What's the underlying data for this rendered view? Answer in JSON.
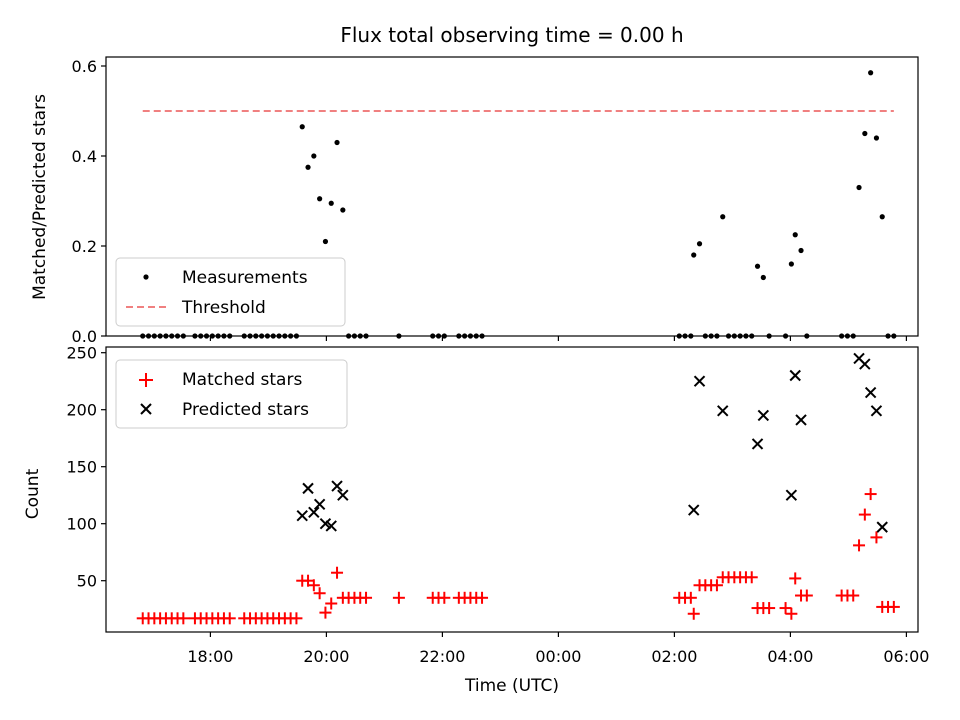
{
  "chart_data": [
    {
      "type": "scatter",
      "title": "Flux total observing time = 0.00 h",
      "xlabel": "",
      "ylabel": "Matched/Predicted stars",
      "xlim": [
        "16:12",
        "06:12"
      ],
      "ylim": [
        0,
        0.62
      ],
      "yticks": [
        "0.0",
        "0.2",
        "0.4",
        "0.6"
      ],
      "yticks_values": [
        0,
        0.2,
        0.4,
        0.6
      ],
      "grid": false,
      "legend": "lower-left",
      "series": [
        {
          "name": "Measurements",
          "kind": "scatter",
          "marker": "dot",
          "color": "#000000",
          "points": [
            [
              "16:50",
              0
            ],
            [
              "16:56",
              0
            ],
            [
              "17:02",
              0
            ],
            [
              "17:08",
              0
            ],
            [
              "17:14",
              0
            ],
            [
              "17:20",
              0
            ],
            [
              "17:26",
              0
            ],
            [
              "17:32",
              0
            ],
            [
              "17:44",
              0
            ],
            [
              "17:50",
              0
            ],
            [
              "17:56",
              0
            ],
            [
              "18:02",
              0
            ],
            [
              "18:08",
              0
            ],
            [
              "18:14",
              0
            ],
            [
              "18:20",
              0
            ],
            [
              "18:35",
              0
            ],
            [
              "18:41",
              0
            ],
            [
              "18:47",
              0
            ],
            [
              "18:53",
              0
            ],
            [
              "18:59",
              0
            ],
            [
              "19:05",
              0
            ],
            [
              "19:11",
              0
            ],
            [
              "19:17",
              0
            ],
            [
              "19:23",
              0
            ],
            [
              "19:29",
              0
            ],
            [
              "19:35",
              0.465
            ],
            [
              "19:41",
              0.375
            ],
            [
              "19:47",
              0.4
            ],
            [
              "19:53",
              0.305
            ],
            [
              "19:59",
              0.21
            ],
            [
              "20:05",
              0.295
            ],
            [
              "20:11",
              0.43
            ],
            [
              "20:17",
              0.28
            ],
            [
              "20:23",
              0
            ],
            [
              "20:29",
              0
            ],
            [
              "20:35",
              0
            ],
            [
              "20:41",
              0
            ],
            [
              "21:15",
              0
            ],
            [
              "21:50",
              0
            ],
            [
              "21:56",
              0
            ],
            [
              "22:02",
              0
            ],
            [
              "22:17",
              0
            ],
            [
              "22:23",
              0
            ],
            [
              "22:29",
              0
            ],
            [
              "22:35",
              0
            ],
            [
              "22:41",
              0
            ],
            [
              "02:05",
              0
            ],
            [
              "02:11",
              0
            ],
            [
              "02:17",
              0
            ],
            [
              "02:20",
              0.18
            ],
            [
              "02:26",
              0.205
            ],
            [
              "02:32",
              0
            ],
            [
              "02:38",
              0
            ],
            [
              "02:44",
              0
            ],
            [
              "02:50",
              0.265
            ],
            [
              "02:56",
              0
            ],
            [
              "03:02",
              0
            ],
            [
              "03:08",
              0
            ],
            [
              "03:14",
              0
            ],
            [
              "03:20",
              0
            ],
            [
              "03:26",
              0.155
            ],
            [
              "03:32",
              0.13
            ],
            [
              "03:38",
              0
            ],
            [
              "03:55",
              0
            ],
            [
              "04:01",
              0.16
            ],
            [
              "04:05",
              0.225
            ],
            [
              "04:11",
              0.19
            ],
            [
              "04:17",
              0
            ],
            [
              "04:53",
              0
            ],
            [
              "04:59",
              0
            ],
            [
              "05:05",
              0
            ],
            [
              "05:11",
              0.33
            ],
            [
              "05:17",
              0.45
            ],
            [
              "05:23",
              0.585
            ],
            [
              "05:29",
              0.44
            ],
            [
              "05:35",
              0.265
            ],
            [
              "05:41",
              0
            ],
            [
              "05:47",
              0
            ]
          ]
        },
        {
          "name": "Threshold",
          "kind": "line",
          "style": "dashed",
          "color": "#f08080",
          "points": [
            [
              "16:50",
              0.5
            ],
            [
              "05:47",
              0.5
            ]
          ]
        }
      ]
    },
    {
      "type": "scatter",
      "title": "",
      "xlabel": "Time (UTC)",
      "ylabel": "Count",
      "xlim": [
        "16:12",
        "06:12"
      ],
      "xticks": [
        "18:00",
        "20:00",
        "22:00",
        "00:00",
        "02:00",
        "04:00",
        "06:00"
      ],
      "ylim": [
        5,
        255
      ],
      "yticks": [
        "50",
        "100",
        "150",
        "200",
        "250"
      ],
      "yticks_values": [
        50,
        100,
        150,
        200,
        250
      ],
      "grid": false,
      "legend": "upper-left",
      "series": [
        {
          "name": "Matched stars",
          "kind": "scatter",
          "marker": "plus",
          "color": "#ff0000",
          "points": [
            [
              "16:50",
              17
            ],
            [
              "16:56",
              17
            ],
            [
              "17:02",
              17
            ],
            [
              "17:08",
              17
            ],
            [
              "17:14",
              17
            ],
            [
              "17:20",
              17
            ],
            [
              "17:26",
              17
            ],
            [
              "17:32",
              17
            ],
            [
              "17:44",
              17
            ],
            [
              "17:50",
              17
            ],
            [
              "17:56",
              17
            ],
            [
              "18:02",
              17
            ],
            [
              "18:08",
              17
            ],
            [
              "18:14",
              17
            ],
            [
              "18:20",
              17
            ],
            [
              "18:35",
              17
            ],
            [
              "18:41",
              17
            ],
            [
              "18:47",
              17
            ],
            [
              "18:53",
              17
            ],
            [
              "18:59",
              17
            ],
            [
              "19:05",
              17
            ],
            [
              "19:11",
              17
            ],
            [
              "19:17",
              17
            ],
            [
              "19:23",
              17
            ],
            [
              "19:29",
              17
            ],
            [
              "19:35",
              50
            ],
            [
              "19:41",
              50
            ],
            [
              "19:47",
              46
            ],
            [
              "19:53",
              39
            ],
            [
              "19:59",
              22
            ],
            [
              "20:05",
              30
            ],
            [
              "20:11",
              57
            ],
            [
              "20:17",
              35
            ],
            [
              "20:23",
              35
            ],
            [
              "20:29",
              35
            ],
            [
              "20:35",
              35
            ],
            [
              "20:41",
              35
            ],
            [
              "21:15",
              35
            ],
            [
              "21:50",
              35
            ],
            [
              "21:56",
              35
            ],
            [
              "22:02",
              35
            ],
            [
              "22:17",
              35
            ],
            [
              "22:23",
              35
            ],
            [
              "22:29",
              35
            ],
            [
              "22:35",
              35
            ],
            [
              "22:41",
              35
            ],
            [
              "02:05",
              35
            ],
            [
              "02:11",
              35
            ],
            [
              "02:17",
              35
            ],
            [
              "02:20",
              21
            ],
            [
              "02:26",
              46
            ],
            [
              "02:32",
              46
            ],
            [
              "02:38",
              46
            ],
            [
              "02:44",
              46
            ],
            [
              "02:50",
              53
            ],
            [
              "02:56",
              53
            ],
            [
              "03:02",
              53
            ],
            [
              "03:08",
              53
            ],
            [
              "03:14",
              53
            ],
            [
              "03:20",
              53
            ],
            [
              "03:26",
              26
            ],
            [
              "03:32",
              26
            ],
            [
              "03:38",
              26
            ],
            [
              "03:55",
              26
            ],
            [
              "04:01",
              21
            ],
            [
              "04:05",
              52
            ],
            [
              "04:11",
              37
            ],
            [
              "04:17",
              37
            ],
            [
              "04:53",
              37
            ],
            [
              "04:59",
              37
            ],
            [
              "05:05",
              37
            ],
            [
              "05:11",
              81
            ],
            [
              "05:17",
              108
            ],
            [
              "05:23",
              126
            ],
            [
              "05:29",
              88
            ],
            [
              "05:35",
              27
            ],
            [
              "05:41",
              27
            ],
            [
              "05:47",
              27
            ]
          ]
        },
        {
          "name": "Predicted stars",
          "kind": "scatter",
          "marker": "x",
          "color": "#000000",
          "points": [
            [
              "19:35",
              107
            ],
            [
              "19:41",
              131
            ],
            [
              "19:47",
              110
            ],
            [
              "19:53",
              117
            ],
            [
              "19:59",
              100
            ],
            [
              "20:05",
              98
            ],
            [
              "20:11",
              133
            ],
            [
              "20:17",
              125
            ],
            [
              "02:20",
              112
            ],
            [
              "02:26",
              225
            ],
            [
              "02:50",
              199
            ],
            [
              "03:26",
              170
            ],
            [
              "03:32",
              195
            ],
            [
              "04:01",
              125
            ],
            [
              "04:05",
              230
            ],
            [
              "04:11",
              191
            ],
            [
              "05:11",
              245
            ],
            [
              "05:17",
              240
            ],
            [
              "05:23",
              215
            ],
            [
              "05:29",
              199
            ],
            [
              "05:35",
              97
            ]
          ]
        }
      ]
    }
  ]
}
